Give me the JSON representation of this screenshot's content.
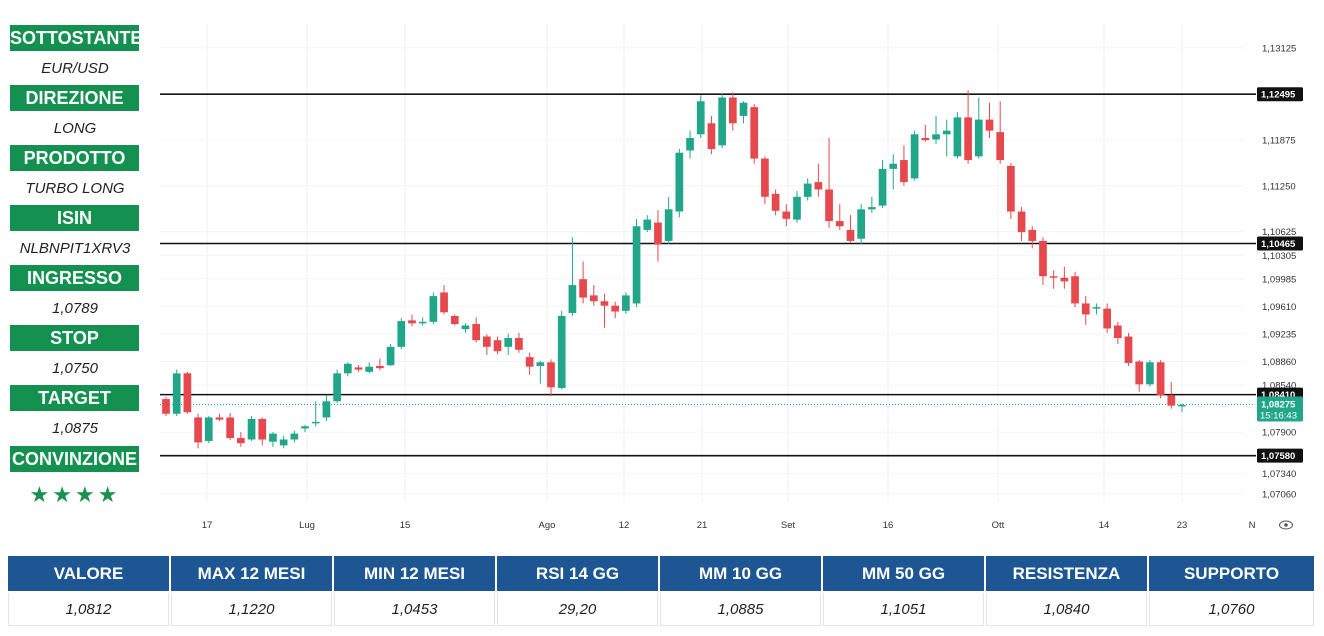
{
  "side_panel": {
    "items": [
      {
        "label": "SOTTOSTANTE",
        "value": "EUR/USD"
      },
      {
        "label": "DIREZIONE",
        "value": "LONG"
      },
      {
        "label": "PRODOTTO",
        "value": "TURBO LONG"
      },
      {
        "label": "ISIN",
        "value": "NLBNPIT1XRV3"
      },
      {
        "label": "INGRESSO",
        "value": "1,0789"
      },
      {
        "label": "STOP",
        "value": "1,0750"
      },
      {
        "label": "TARGET",
        "value": "1,0875"
      },
      {
        "label": "CONVINZIONE",
        "value": "★★★★"
      }
    ]
  },
  "chart_data": {
    "type": "candlestick",
    "x_ticks": [
      "17",
      "Lug",
      "15",
      "Ago",
      "12",
      "21",
      "Set",
      "16",
      "Ott",
      "14",
      "23",
      "N"
    ],
    "y_ticks": [
      "1,13125",
      "1,11875",
      "1,11250",
      "1,10625",
      "1,10305",
      "1,09985",
      "1,09610",
      "1,09235",
      "1,08860",
      "1,08540",
      "1,07900",
      "1,07340",
      "1,07060"
    ],
    "y_tick_values": [
      1.13125,
      1.11875,
      1.1125,
      1.10625,
      1.10305,
      1.09985,
      1.0961,
      1.09235,
      1.0886,
      1.0854,
      1.079,
      1.0734,
      1.0706
    ],
    "ylim": [
      1.0695,
      1.1345
    ],
    "horizontal_lines": [
      {
        "value": 1.12495,
        "label": "1,12495"
      },
      {
        "value": 1.10465,
        "label": "1,10465"
      },
      {
        "value": 1.0841,
        "label": "1,08410"
      },
      {
        "value": 1.0758,
        "label": "1,07580"
      }
    ],
    "current_price": {
      "value": 1.08275,
      "label": "1,08275",
      "countdown": "15:16:43"
    },
    "colors": {
      "up": "#22a68a",
      "down": "#e5484d",
      "level_line": "#111111",
      "current_label": "#22a68a"
    },
    "candles": [
      [
        1.0835,
        1.0838,
        1.0812,
        1.0815
      ],
      [
        1.0815,
        1.0875,
        1.0812,
        1.087
      ],
      [
        1.087,
        1.0872,
        1.0815,
        1.0817
      ],
      [
        1.081,
        1.0815,
        1.0768,
        1.0776
      ],
      [
        1.0778,
        1.0812,
        1.0775,
        1.081
      ],
      [
        1.081,
        1.0815,
        1.0805,
        1.0807
      ],
      [
        1.081,
        1.0816,
        1.0779,
        1.0782
      ],
      [
        1.0782,
        1.079,
        1.077,
        1.0775
      ],
      [
        1.078,
        1.0812,
        1.0778,
        1.0808
      ],
      [
        1.0808,
        1.081,
        1.0772,
        1.078
      ],
      [
        1.0777,
        1.079,
        1.077,
        1.0788
      ],
      [
        1.0772,
        1.0785,
        1.0768,
        1.078
      ],
      [
        1.078,
        1.0792,
        1.0776,
        1.0788
      ],
      [
        1.0795,
        1.08,
        1.079,
        1.0798
      ],
      [
        1.0802,
        1.0832,
        1.0798,
        1.0804
      ],
      [
        1.081,
        1.084,
        1.0805,
        1.0832
      ],
      [
        1.0832,
        1.0875,
        1.083,
        1.087
      ],
      [
        1.087,
        1.0885,
        1.0866,
        1.0883
      ],
      [
        1.0878,
        1.0881,
        1.0872,
        1.0875
      ],
      [
        1.0872,
        1.0885,
        1.087,
        1.0879
      ],
      [
        1.088,
        1.089,
        1.0874,
        1.0877
      ],
      [
        1.0881,
        1.091,
        1.088,
        1.0906
      ],
      [
        1.0906,
        1.0945,
        1.0903,
        1.0941
      ],
      [
        1.0942,
        1.095,
        1.0934,
        1.0938
      ],
      [
        1.0938,
        1.0946,
        1.0935,
        1.094
      ],
      [
        1.094,
        1.098,
        1.0937,
        1.0975
      ],
      [
        1.098,
        1.099,
        1.095,
        1.0953
      ],
      [
        1.0948,
        1.095,
        1.0935,
        1.0937
      ],
      [
        1.093,
        1.0938,
        1.0925,
        1.0935
      ],
      [
        1.0937,
        1.0946,
        1.0912,
        1.0915
      ],
      [
        1.092,
        1.0923,
        1.0895,
        1.0906
      ],
      [
        1.0915,
        1.092,
        1.0896,
        1.09
      ],
      [
        1.0906,
        1.0924,
        1.0895,
        1.0918
      ],
      [
        1.0918,
        1.0925,
        1.0898,
        1.0902
      ],
      [
        1.0892,
        1.0898,
        1.0868,
        1.0879
      ],
      [
        1.088,
        1.0887,
        1.0856,
        1.0885
      ],
      [
        1.0885,
        1.0889,
        1.0839,
        1.0851
      ],
      [
        1.085,
        1.0955,
        1.0848,
        1.0948
      ],
      [
        1.0952,
        1.1055,
        1.0948,
        1.099
      ],
      [
        1.0998,
        1.1022,
        1.0965,
        1.0973
      ],
      [
        1.0976,
        1.099,
        1.0962,
        1.0968
      ],
      [
        1.0968,
        1.0978,
        1.0932,
        1.0962
      ],
      [
        1.0962,
        1.0967,
        1.0945,
        1.0954
      ],
      [
        1.0955,
        1.098,
        1.0951,
        1.0976
      ],
      [
        1.0965,
        1.108,
        1.096,
        1.107
      ],
      [
        1.1065,
        1.1085,
        1.1062,
        1.1079
      ],
      [
        1.1075,
        1.1092,
        1.1022,
        1.1045
      ],
      [
        1.105,
        1.111,
        1.1046,
        1.1093
      ],
      [
        1.109,
        1.1175,
        1.1082,
        1.117
      ],
      [
        1.1173,
        1.12,
        1.1162,
        1.119
      ],
      [
        1.1195,
        1.1248,
        1.119,
        1.124
      ],
      [
        1.121,
        1.122,
        1.1168,
        1.1175
      ],
      [
        1.118,
        1.125,
        1.1176,
        1.1245
      ],
      [
        1.1245,
        1.1252,
        1.12,
        1.121
      ],
      [
        1.122,
        1.124,
        1.121,
        1.1238
      ],
      [
        1.1232,
        1.1236,
        1.1155,
        1.1162
      ],
      [
        1.1162,
        1.1165,
        1.11,
        1.111
      ],
      [
        1.1114,
        1.112,
        1.1085,
        1.1091
      ],
      [
        1.109,
        1.11,
        1.107,
        1.108
      ],
      [
        1.1079,
        1.1118,
        1.1075,
        1.111
      ],
      [
        1.111,
        1.1135,
        1.1105,
        1.1128
      ],
      [
        1.113,
        1.1155,
        1.111,
        1.112
      ],
      [
        1.112,
        1.119,
        1.1068,
        1.1077
      ],
      [
        1.1077,
        1.11,
        1.1065,
        1.107
      ],
      [
        1.1065,
        1.1085,
        1.1048,
        1.105
      ],
      [
        1.1053,
        1.11,
        1.1045,
        1.1093
      ],
      [
        1.1093,
        1.111,
        1.1088,
        1.1096
      ],
      [
        1.1098,
        1.116,
        1.1095,
        1.1148
      ],
      [
        1.1148,
        1.1168,
        1.112,
        1.1155
      ],
      [
        1.116,
        1.118,
        1.1125,
        1.113
      ],
      [
        1.1135,
        1.12,
        1.1132,
        1.1195
      ],
      [
        1.119,
        1.1208,
        1.1185,
        1.1187
      ],
      [
        1.1188,
        1.122,
        1.1182,
        1.1195
      ],
      [
        1.1195,
        1.1215,
        1.1165,
        1.12
      ],
      [
        1.1165,
        1.1225,
        1.1162,
        1.1218
      ],
      [
        1.1218,
        1.1255,
        1.1155,
        1.116
      ],
      [
        1.1165,
        1.1245,
        1.1162,
        1.1215
      ],
      [
        1.1215,
        1.1238,
        1.119,
        1.12
      ],
      [
        1.1198,
        1.124,
        1.1155,
        1.116
      ],
      [
        1.1152,
        1.1156,
        1.108,
        1.109
      ],
      [
        1.109,
        1.1096,
        1.105,
        1.1062
      ],
      [
        1.1065,
        1.107,
        1.104,
        1.105
      ],
      [
        1.105,
        1.1055,
        1.099,
        1.1002
      ],
      [
        1.1002,
        1.101,
        1.0985,
        1.1
      ],
      [
        1.1,
        1.1015,
        1.0985,
        1.0995
      ],
      [
        1.1002,
        1.1008,
        1.096,
        1.0965
      ],
      [
        1.0965,
        1.0975,
        1.0936,
        1.095
      ],
      [
        1.0958,
        1.0965,
        1.095,
        1.096
      ],
      [
        1.0958,
        1.0965,
        1.0925,
        1.0931
      ],
      [
        1.0935,
        1.094,
        1.091,
        1.0918
      ],
      [
        1.092,
        1.0925,
        1.088,
        1.0884
      ],
      [
        1.0886,
        1.0888,
        1.0845,
        1.0855
      ],
      [
        1.0855,
        1.0888,
        1.0852,
        1.0885
      ],
      [
        1.0885,
        1.0888,
        1.0836,
        1.084
      ],
      [
        1.084,
        1.0858,
        1.0822,
        1.0826
      ],
      [
        1.0825,
        1.0829,
        1.0817,
        1.0827
      ]
    ]
  },
  "summary_table": {
    "headers": [
      "VALORE",
      "MAX 12 MESI",
      "MIN 12 MESI",
      "RSI 14 GG",
      "MM 10 GG",
      "MM 50 GG",
      "RESISTENZA",
      "SUPPORTO"
    ],
    "values": [
      "1,0812",
      "1,1220",
      "1,0453",
      "29,20",
      "1,0885",
      "1,1051",
      "1,0840",
      "1,0760"
    ]
  }
}
